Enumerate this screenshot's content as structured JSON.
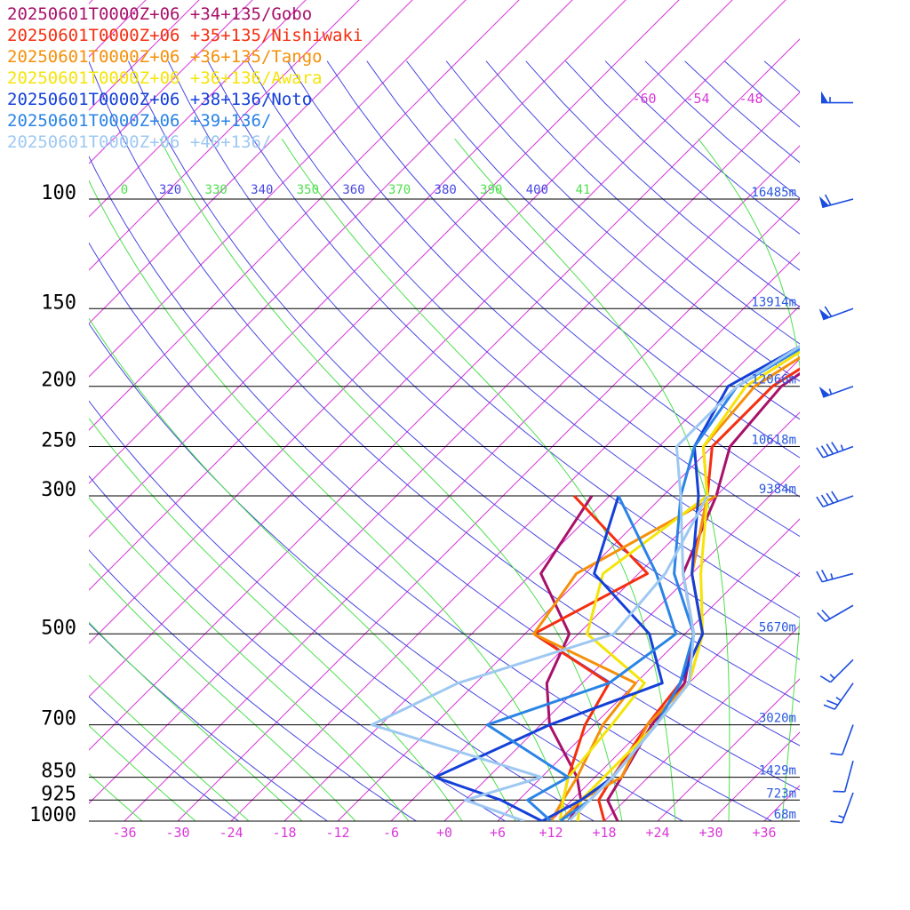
{
  "chart_data": {
    "type": "line",
    "diagram": "skew-T log-P",
    "legend_placement": "top-left",
    "series": [
      {
        "name": "20250601T0000Z+06 +34+135/Gobo",
        "color": "#a8116a",
        "temperature": [
          [
            1000,
            19.5
          ],
          [
            925,
            16
          ],
          [
            850,
            15
          ],
          [
            700,
            12.5
          ],
          [
            600,
            11.5
          ],
          [
            500,
            7
          ],
          [
            400,
            -1
          ],
          [
            300,
            -6
          ],
          [
            250,
            -10
          ],
          [
            200,
            -11
          ],
          [
            150,
            -7
          ],
          [
            100,
            -3
          ]
        ],
        "dewpoint": [
          [
            1000,
            14
          ],
          [
            925,
            13
          ],
          [
            850,
            10
          ],
          [
            700,
            1
          ],
          [
            600,
            -4
          ],
          [
            500,
            -7
          ],
          [
            400,
            -17
          ],
          [
            300,
            -20
          ]
        ]
      },
      {
        "name": "20250601T0000Z+06 +35+135/Nishiwaki",
        "color": "#f52e10",
        "temperature": [
          [
            1000,
            18
          ],
          [
            925,
            15
          ],
          [
            850,
            14
          ],
          [
            700,
            12
          ],
          [
            600,
            11
          ],
          [
            500,
            8
          ],
          [
            400,
            0
          ],
          [
            300,
            -7
          ],
          [
            250,
            -12
          ],
          [
            200,
            -12
          ],
          [
            150,
            -7
          ],
          [
            100,
            -1
          ]
        ],
        "dewpoint": [
          [
            1000,
            12
          ],
          [
            925,
            11
          ],
          [
            850,
            9
          ],
          [
            700,
            5
          ],
          [
            600,
            3
          ],
          [
            500,
            -11
          ],
          [
            400,
            -5
          ],
          [
            300,
            -22
          ]
        ]
      },
      {
        "name": "20250601T0000Z+06 +36+135/Tango",
        "color": "#f5900a",
        "temperature": [
          [
            1000,
            13
          ],
          [
            925,
            13
          ],
          [
            850,
            15
          ],
          [
            700,
            12
          ],
          [
            600,
            12
          ],
          [
            500,
            8
          ],
          [
            400,
            0
          ],
          [
            300,
            -7
          ],
          [
            250,
            -13
          ],
          [
            200,
            -14
          ],
          [
            150,
            -9
          ],
          [
            100,
            -1
          ]
        ],
        "dewpoint": [
          [
            1000,
            12
          ],
          [
            925,
            11
          ],
          [
            850,
            10
          ],
          [
            700,
            7
          ],
          [
            600,
            6
          ],
          [
            500,
            -11
          ],
          [
            400,
            -13
          ],
          [
            300,
            -6
          ]
        ]
      },
      {
        "name": "20250601T0000Z+06 +36+136/Awara",
        "color": "#f5e40a",
        "temperature": [
          [
            1000,
            15
          ],
          [
            925,
            13
          ],
          [
            850,
            13
          ],
          [
            700,
            13
          ],
          [
            600,
            12
          ],
          [
            500,
            8
          ],
          [
            400,
            1
          ],
          [
            300,
            -7
          ],
          [
            250,
            -13
          ],
          [
            200,
            -15
          ],
          [
            150,
            -10
          ],
          [
            100,
            0
          ]
        ],
        "dewpoint": [
          [
            1000,
            13
          ],
          [
            925,
            11
          ],
          [
            850,
            9
          ],
          [
            700,
            8
          ],
          [
            600,
            7
          ],
          [
            500,
            -5
          ],
          [
            400,
            -10
          ],
          [
            300,
            -7
          ]
        ]
      },
      {
        "name": "20250601T0000Z+06 +38+136/Noto",
        "color": "#1440d8",
        "temperature": [
          [
            1000,
            11
          ],
          [
            925,
            13
          ],
          [
            850,
            14
          ],
          [
            700,
            13
          ],
          [
            600,
            11
          ],
          [
            500,
            8
          ],
          [
            400,
            0
          ],
          [
            300,
            -8
          ],
          [
            250,
            -14
          ],
          [
            200,
            -17
          ],
          [
            150,
            -10
          ],
          [
            100,
            0
          ]
        ],
        "dewpoint": [
          [
            1000,
            11
          ],
          [
            925,
            4
          ],
          [
            850,
            -6
          ],
          [
            700,
            1
          ],
          [
            600,
            9
          ],
          [
            500,
            2
          ],
          [
            400,
            -11
          ],
          [
            300,
            -17
          ]
        ]
      },
      {
        "name": "20250601T0000Z+06 +39+136/",
        "color": "#2a84e6",
        "temperature": [
          [
            1000,
            13
          ],
          [
            925,
            14
          ],
          [
            850,
            14
          ],
          [
            700,
            13
          ],
          [
            600,
            11
          ],
          [
            500,
            7
          ],
          [
            400,
            -2
          ],
          [
            300,
            -10
          ],
          [
            250,
            -14
          ],
          [
            200,
            -16
          ],
          [
            150,
            -10
          ],
          [
            100,
            0
          ]
        ],
        "dewpoint": [
          [
            1000,
            12
          ],
          [
            925,
            7
          ],
          [
            850,
            9
          ],
          [
            700,
            -6
          ],
          [
            600,
            3
          ],
          [
            500,
            5
          ],
          [
            400,
            -4
          ],
          [
            300,
            -17
          ]
        ]
      },
      {
        "name": "20250601T0000Z+06 +40+136/",
        "color": "#9ec8f2",
        "temperature": [
          [
            1000,
            14
          ],
          [
            925,
            14
          ],
          [
            850,
            14
          ],
          [
            700,
            13
          ],
          [
            600,
            12
          ],
          [
            500,
            7
          ],
          [
            400,
            -1
          ],
          [
            300,
            -10
          ],
          [
            250,
            -16
          ],
          [
            200,
            -16
          ],
          [
            150,
            -11
          ],
          [
            100,
            1
          ]
        ],
        "dewpoint": [
          [
            1000,
            9
          ],
          [
            925,
            0
          ],
          [
            850,
            6
          ],
          [
            700,
            -19
          ],
          [
            600,
            -14
          ],
          [
            500,
            -2
          ],
          [
            400,
            -3
          ],
          [
            300,
            -7
          ]
        ]
      }
    ],
    "pressure_levels": [
      {
        "p": 100,
        "label": "100",
        "height": "16485m"
      },
      {
        "p": 150,
        "label": "150",
        "height": "13914m"
      },
      {
        "p": 200,
        "label": "200",
        "height": "12066m"
      },
      {
        "p": 250,
        "label": "250",
        "height": "10618m"
      },
      {
        "p": 300,
        "label": "300",
        "height": "9384m"
      },
      {
        "p": 500,
        "label": "500",
        "height": "5670m"
      },
      {
        "p": 700,
        "label": "700",
        "height": "3020m"
      },
      {
        "p": 850,
        "label": "850",
        "height": "1429m"
      },
      {
        "p": 925,
        "label": "925",
        "height": "723m"
      },
      {
        "p": 1000,
        "label": "1000",
        "height": "68m"
      }
    ],
    "x_ticks": [
      "-36",
      "-30",
      "-24",
      "-18",
      "-12",
      "-6",
      "+0",
      "+6",
      "+12",
      "+18",
      "+24",
      "+30",
      "+36"
    ],
    "x_tick_values": [
      -36,
      -30,
      -24,
      -18,
      -12,
      -6,
      0,
      6,
      12,
      18,
      24,
      30,
      36
    ],
    "theta_labels": [
      {
        "value": "0",
        "color": "#4ee04e"
      },
      {
        "value": "320",
        "color": "#4848e0"
      },
      {
        "value": "330",
        "color": "#4ee04e"
      },
      {
        "value": "340",
        "color": "#4848e0"
      },
      {
        "value": "350",
        "color": "#4ee04e"
      },
      {
        "value": "360",
        "color": "#4848e0"
      },
      {
        "value": "370",
        "color": "#4ee04e"
      },
      {
        "value": "380",
        "color": "#4848e0"
      },
      {
        "value": "390",
        "color": "#4ee04e"
      },
      {
        "value": "400",
        "color": "#4848e0"
      },
      {
        "value": "41",
        "color": "#4ee04e"
      }
    ],
    "upper_isotherm_labels": [
      "-60",
      "-54",
      "-48"
    ],
    "pressure_range": [
      100,
      1000
    ],
    "temperature_range_at_1000": [
      -40,
      40
    ],
    "colors": {
      "isotherm": "#d838d8",
      "dry_adiabat": "#4848e0",
      "moist_adiabat": "#4ee04e",
      "isobar": "#000000",
      "height_label": "#2a58e0",
      "wind_barb": "#1a4ce0"
    },
    "wind_barbs": [
      {
        "p": 70,
        "dir": 270,
        "speed": 55
      },
      {
        "p": 100,
        "dir": 255,
        "speed": 60
      },
      {
        "p": 150,
        "dir": 250,
        "speed": 60
      },
      {
        "p": 200,
        "dir": 250,
        "speed": 55
      },
      {
        "p": 250,
        "dir": 250,
        "speed": 45
      },
      {
        "p": 300,
        "dir": 250,
        "speed": 40
      },
      {
        "p": 400,
        "dir": 255,
        "speed": 25
      },
      {
        "p": 450,
        "dir": 240,
        "speed": 20
      },
      {
        "p": 550,
        "dir": 225,
        "speed": 15
      },
      {
        "p": 600,
        "dir": 215,
        "speed": 25
      },
      {
        "p": 700,
        "dir": 200,
        "speed": 10
      },
      {
        "p": 800,
        "dir": 195,
        "speed": 10
      },
      {
        "p": 900,
        "dir": 200,
        "speed": 15
      }
    ]
  }
}
